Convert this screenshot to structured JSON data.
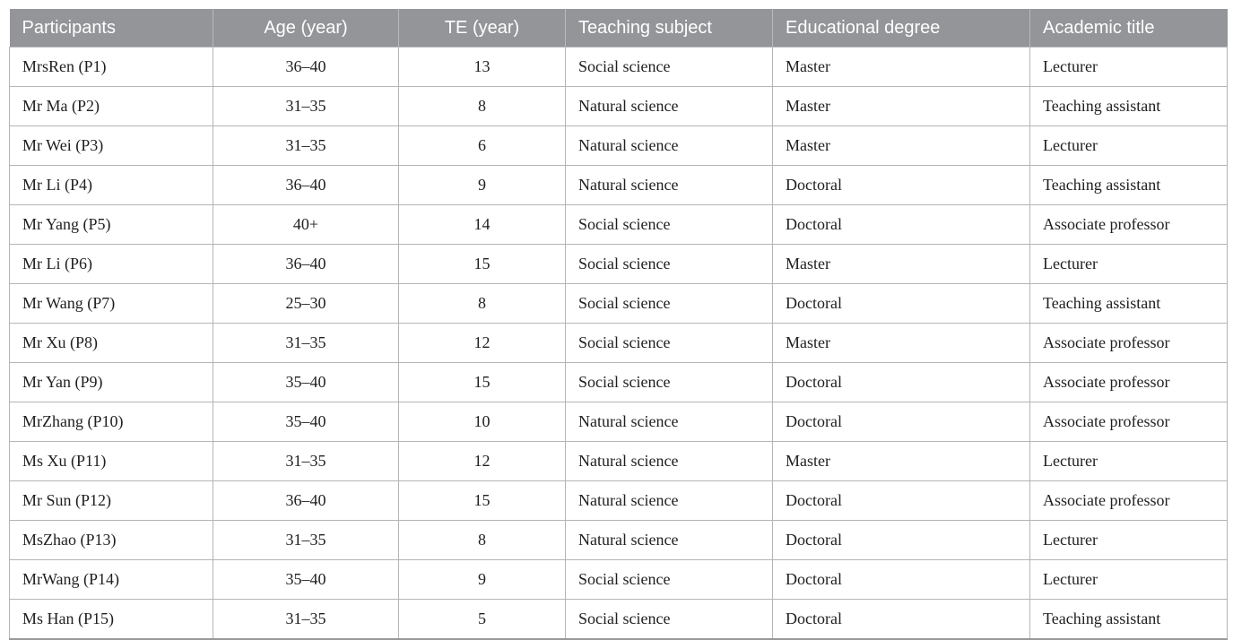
{
  "table": {
    "columns": [
      {
        "id": "participants",
        "label": "Participants",
        "align": "left"
      },
      {
        "id": "age",
        "label": "Age (year)",
        "align": "center"
      },
      {
        "id": "te",
        "label": "TE (year)",
        "align": "center"
      },
      {
        "id": "teaching-subject",
        "label": "Teaching subject",
        "align": "left"
      },
      {
        "id": "educational-degree",
        "label": "Educational degree",
        "align": "left"
      },
      {
        "id": "academic-title",
        "label": "Academic title",
        "align": "left"
      }
    ],
    "rows": [
      {
        "cells": [
          "MrsRen (P1)",
          "36–40",
          "13",
          "Social science",
          "Master",
          "Lecturer"
        ]
      },
      {
        "cells": [
          "Mr Ma (P2)",
          "31–35",
          "8",
          "Natural science",
          "Master",
          "Teaching assistant"
        ]
      },
      {
        "cells": [
          "Mr Wei (P3)",
          "31–35",
          "6",
          "Natural science",
          "Master",
          "Lecturer"
        ]
      },
      {
        "cells": [
          "Mr Li (P4)",
          "36–40",
          "9",
          "Natural science",
          "Doctoral",
          "Teaching assistant"
        ]
      },
      {
        "cells": [
          "Mr Yang (P5)",
          "40+",
          "14",
          "Social science",
          "Doctoral",
          "Associate professor"
        ]
      },
      {
        "cells": [
          "Mr Li (P6)",
          "36–40",
          "15",
          "Social science",
          "Master",
          "Lecturer"
        ]
      },
      {
        "cells": [
          "Mr Wang (P7)",
          "25–30",
          "8",
          "Social science",
          "Doctoral",
          "Teaching assistant"
        ]
      },
      {
        "cells": [
          "Mr Xu (P8)",
          "31–35",
          "12",
          "Social science",
          "Master",
          "Associate professor"
        ]
      },
      {
        "cells": [
          "Mr Yan (P9)",
          "35–40",
          "15",
          "Social science",
          "Doctoral",
          "Associate professor"
        ]
      },
      {
        "cells": [
          "MrZhang (P10)",
          "35–40",
          "10",
          "Natural science",
          "Doctoral",
          "Associate professor"
        ]
      },
      {
        "cells": [
          "Ms Xu (P11)",
          "31–35",
          "12",
          "Natural science",
          "Master",
          "Lecturer"
        ]
      },
      {
        "cells": [
          "Mr Sun (P12)",
          "36–40",
          "15",
          "Natural science",
          "Doctoral",
          "Associate professor"
        ]
      },
      {
        "cells": [
          "MsZhao (P13)",
          "31–35",
          "8",
          "Natural science",
          "Doctoral",
          "Lecturer"
        ]
      },
      {
        "cells": [
          "MrWang (P14)",
          "35–40",
          "9",
          "Social science",
          "Doctoral",
          "Lecturer"
        ]
      },
      {
        "cells": [
          "Ms Han (P15)",
          "31–35",
          "5",
          "Social science",
          "Doctoral",
          "Teaching assistant"
        ]
      }
    ]
  },
  "colors": {
    "header_bg": "#939598",
    "header_text": "#ffffff",
    "header_divider": "#b7b9ba",
    "grid_line": "#b3b5b6",
    "bottom_border": "#97999b",
    "body_text": "#1f1f1f",
    "page_bg": "#ffffff"
  }
}
